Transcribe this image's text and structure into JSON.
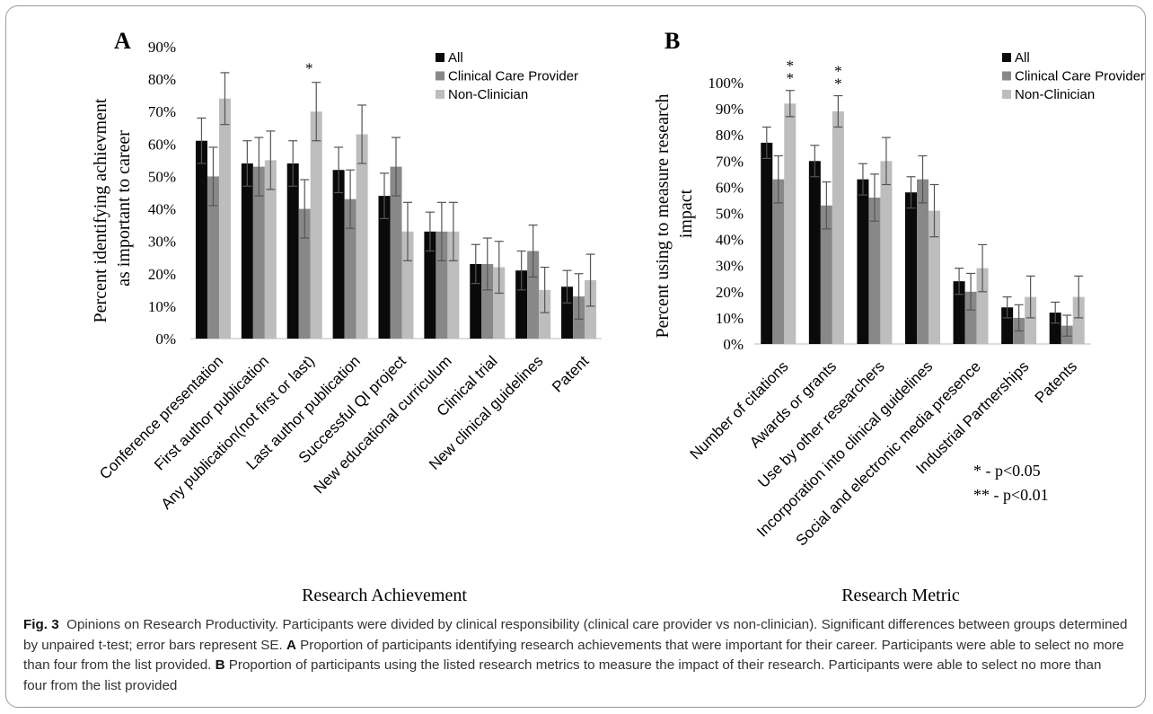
{
  "panels": [
    {
      "id": "A",
      "letter": "A",
      "ylabel_lines": [
        "Percent identifying achievment",
        "as important to career"
      ],
      "xlabel": "Research Achievement"
    },
    {
      "id": "B",
      "letter": "B",
      "ylabel_lines": [
        "Percent using to measure research",
        "impact"
      ],
      "xlabel": "Research Metric"
    }
  ],
  "footnotes": [
    "* - p<0.05",
    "** - p<0.01"
  ],
  "colors": {
    "All": "#0a0a0a",
    "Clinical Care Provider": "#888888",
    "Non-Clinician": "#bdbdbd"
  },
  "caption": {
    "figure_label": "Fig. 3",
    "title": "Opinions on Research Productivity.",
    "text1": "Participants were divided by clinical responsibility (clinical care provider vs non-clinician). Significant differences between groups determined by unpaired t-test; error bars represent SE.",
    "label_a": "A",
    "text_a": "Proportion of participants identifying research achievements that were important for their career. Participants were able to select no more than four from the list provided.",
    "label_b": "B",
    "text_b": "Proportion of participants using the listed research metrics to measure the impact of their research. Participants were able to select no more than four from the list provided"
  },
  "chart_data": [
    {
      "type": "bar",
      "panel": "A",
      "categories": [
        "Conference presentation",
        "First author publication",
        "Any publication(not first or last)",
        "Last author publication",
        "Successful QI project",
        "New educational curriculum",
        "Clinical trial",
        "New clinical guidelines",
        "Patent"
      ],
      "series": [
        {
          "name": "All",
          "values": [
            61,
            54,
            54,
            52,
            44,
            33,
            23,
            21,
            16
          ],
          "err": [
            7,
            7,
            7,
            7,
            7,
            6,
            6,
            6,
            5
          ]
        },
        {
          "name": "Clinical Care Provider",
          "values": [
            50,
            53,
            40,
            43,
            53,
            33,
            23,
            27,
            13
          ],
          "err": [
            9,
            9,
            9,
            9,
            9,
            9,
            8,
            8,
            7
          ]
        },
        {
          "name": "Non-Clinician",
          "values": [
            74,
            55,
            70,
            63,
            33,
            33,
            22,
            15,
            18
          ],
          "err": [
            8,
            9,
            9,
            9,
            9,
            9,
            8,
            7,
            8
          ]
        }
      ],
      "significance": [
        "",
        "",
        "*",
        "",
        "",
        "",
        "",
        "",
        ""
      ],
      "ylim": [
        0,
        90
      ],
      "yticks": [
        0,
        10,
        20,
        30,
        40,
        50,
        60,
        70,
        80,
        90
      ],
      "ytick_format": "%",
      "legend": "top-right",
      "grid": false
    },
    {
      "type": "bar",
      "panel": "B",
      "categories": [
        "Number of citations",
        "Awards or grants",
        "Use by other researchers",
        "Incorporation into clinical guidelines",
        "Social and electronic media presence",
        "Industrial Partnerships",
        "Patents"
      ],
      "series": [
        {
          "name": "All",
          "values": [
            77,
            70,
            63,
            58,
            24,
            14,
            12
          ],
          "err": [
            6,
            6,
            6,
            6,
            5,
            4,
            4
          ]
        },
        {
          "name": "Clinical Care Provider",
          "values": [
            63,
            53,
            56,
            63,
            20,
            10,
            7
          ],
          "err": [
            9,
            9,
            9,
            9,
            7,
            5,
            4
          ]
        },
        {
          "name": "Non-Clinician",
          "values": [
            92,
            89,
            70,
            51,
            29,
            18,
            18
          ],
          "err": [
            5,
            6,
            9,
            10,
            9,
            8,
            8
          ]
        }
      ],
      "significance": [
        "**",
        "**",
        "",
        "",
        "",
        "",
        ""
      ],
      "ylim": [
        0,
        100
      ],
      "yticks": [
        0,
        10,
        20,
        30,
        40,
        50,
        60,
        70,
        80,
        90,
        100
      ],
      "ytick_format": "%",
      "legend": "top-right",
      "grid": false
    }
  ]
}
